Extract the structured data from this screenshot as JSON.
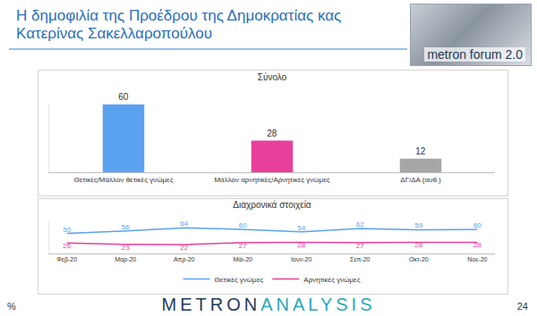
{
  "page": {
    "title": "Η δημοφιλία της Προέδρου της Δημοκρατίας κας Κατερίνας Σακελλαροπούλου",
    "logo": "metron forum 2.0",
    "brand": [
      "METRON",
      "ANALYSIS"
    ],
    "unit": "%",
    "page_number": 24
  },
  "chart_data": [
    {
      "type": "bar",
      "title": "Σύνολο",
      "categories": [
        "Θετικές/Μάλλον θετικές γνώμες",
        "Μάλλον αρνητικές/Αρνητικές γνώμες",
        "ΔΓ/ΔΑ (αυθ.)"
      ],
      "values": [
        60,
        28,
        12
      ],
      "colors": [
        "#5aa2f0",
        "#e8409a",
        "#a6a6a6"
      ],
      "ylim": [
        0,
        60
      ],
      "grid": false,
      "data_labels": true,
      "tick_labels": "x"
    },
    {
      "type": "line",
      "title": "Διαχρονικά στοιχεία",
      "categories": [
        "Φεβ-20",
        "Μαρ-20",
        "Απρ-20",
        "Μάι-20",
        "Ιουν-20",
        "Σεπ-20",
        "Οκτ-20",
        "Νοε-20"
      ],
      "series": [
        {
          "name": "Θετικές γνώμες",
          "color": "#5aa2f0",
          "values": [
            50,
            56,
            64,
            60,
            54,
            62,
            59,
            60
          ]
        },
        {
          "name": "Αρνητικές γνώμες",
          "color": "#e8409a",
          "values": [
            26,
            23,
            22,
            27,
            28,
            27,
            28,
            28
          ]
        }
      ],
      "ylim": [
        0,
        80
      ],
      "grid": false,
      "data_labels": true,
      "tick_labels": "x",
      "legend": "bottom"
    }
  ]
}
